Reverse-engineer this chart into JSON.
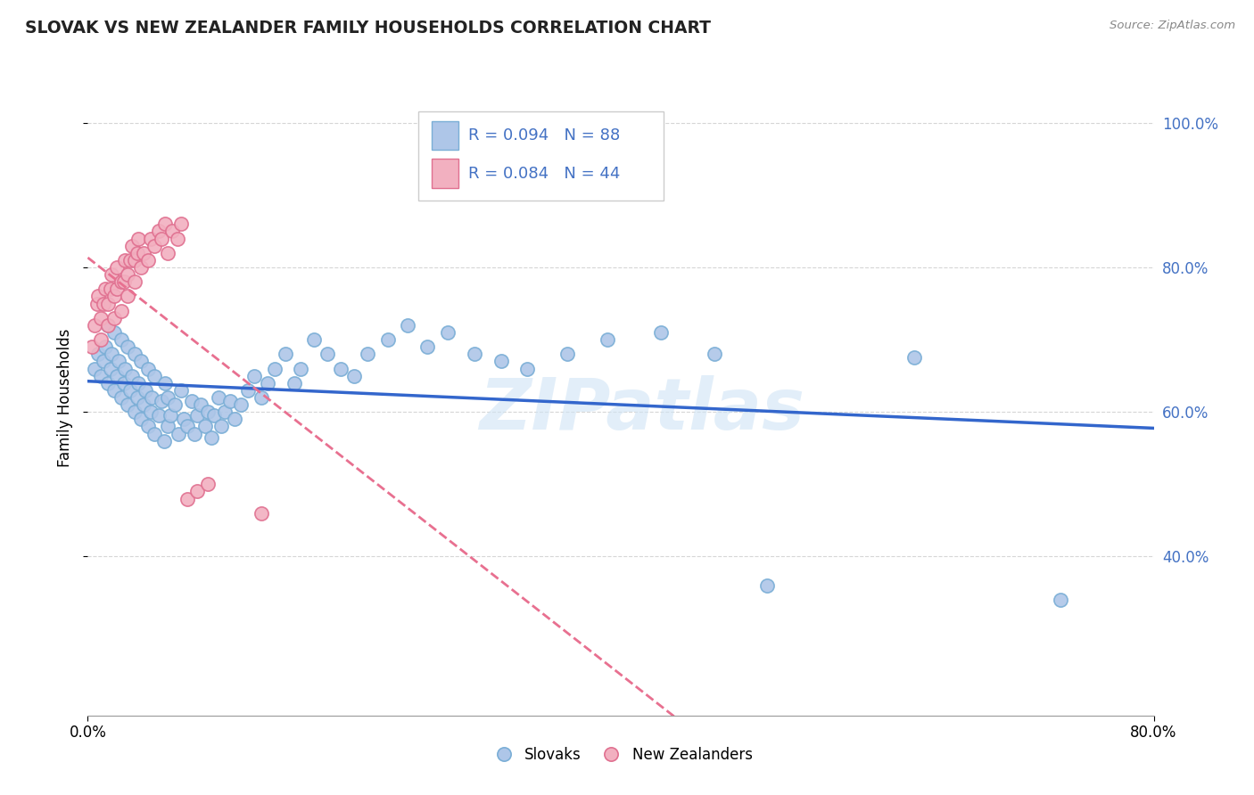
{
  "title": "SLOVAK VS NEW ZEALANDER FAMILY HOUSEHOLDS CORRELATION CHART",
  "source": "Source: ZipAtlas.com",
  "ylabel": "Family Households",
  "xlim": [
    0.0,
    0.8
  ],
  "ylim": [
    0.18,
    1.06
  ],
  "ytick_values": [
    0.4,
    0.6,
    0.8,
    1.0
  ],
  "legend_r_slovak": "R = 0.094",
  "legend_n_slovak": "N = 88",
  "legend_r_nz": "R = 0.084",
  "legend_n_nz": "N = 44",
  "slovak_color": "#aec6e8",
  "slovak_edge_color": "#7aaed6",
  "nz_color": "#f2b0c0",
  "nz_edge_color": "#e07090",
  "trendline_slovak_color": "#3366cc",
  "trendline_nz_color": "#e87090",
  "watermark": "ZIPatlas",
  "background_color": "#ffffff",
  "grid_color": "#cccccc",
  "right_tick_color": "#4472c4",
  "slovak_x": [
    0.005,
    0.008,
    0.01,
    0.012,
    0.013,
    0.015,
    0.015,
    0.017,
    0.018,
    0.02,
    0.02,
    0.022,
    0.023,
    0.025,
    0.025,
    0.027,
    0.028,
    0.03,
    0.03,
    0.032,
    0.033,
    0.035,
    0.035,
    0.037,
    0.038,
    0.04,
    0.04,
    0.042,
    0.043,
    0.045,
    0.045,
    0.047,
    0.048,
    0.05,
    0.05,
    0.053,
    0.055,
    0.057,
    0.058,
    0.06,
    0.06,
    0.062,
    0.065,
    0.068,
    0.07,
    0.072,
    0.075,
    0.078,
    0.08,
    0.082,
    0.085,
    0.088,
    0.09,
    0.093,
    0.095,
    0.098,
    0.1,
    0.103,
    0.107,
    0.11,
    0.115,
    0.12,
    0.125,
    0.13,
    0.135,
    0.14,
    0.148,
    0.155,
    0.16,
    0.17,
    0.18,
    0.19,
    0.2,
    0.21,
    0.225,
    0.24,
    0.255,
    0.27,
    0.29,
    0.31,
    0.33,
    0.36,
    0.39,
    0.43,
    0.47,
    0.51,
    0.62,
    0.73
  ],
  "slovak_y": [
    0.66,
    0.68,
    0.65,
    0.67,
    0.69,
    0.64,
    0.72,
    0.66,
    0.68,
    0.63,
    0.71,
    0.65,
    0.67,
    0.62,
    0.7,
    0.64,
    0.66,
    0.61,
    0.69,
    0.63,
    0.65,
    0.6,
    0.68,
    0.62,
    0.64,
    0.59,
    0.67,
    0.61,
    0.63,
    0.58,
    0.66,
    0.6,
    0.62,
    0.57,
    0.65,
    0.595,
    0.615,
    0.56,
    0.64,
    0.58,
    0.62,
    0.595,
    0.61,
    0.57,
    0.63,
    0.59,
    0.58,
    0.615,
    0.57,
    0.595,
    0.61,
    0.58,
    0.6,
    0.565,
    0.595,
    0.62,
    0.58,
    0.6,
    0.615,
    0.59,
    0.61,
    0.63,
    0.65,
    0.62,
    0.64,
    0.66,
    0.68,
    0.64,
    0.66,
    0.7,
    0.68,
    0.66,
    0.65,
    0.68,
    0.7,
    0.72,
    0.69,
    0.71,
    0.68,
    0.67,
    0.66,
    0.68,
    0.7,
    0.71,
    0.68,
    0.36,
    0.675,
    0.34
  ],
  "nz_x": [
    0.003,
    0.005,
    0.007,
    0.008,
    0.01,
    0.01,
    0.012,
    0.013,
    0.015,
    0.015,
    0.017,
    0.018,
    0.02,
    0.02,
    0.022,
    0.022,
    0.025,
    0.025,
    0.027,
    0.028,
    0.03,
    0.03,
    0.032,
    0.033,
    0.035,
    0.035,
    0.037,
    0.038,
    0.04,
    0.042,
    0.045,
    0.047,
    0.05,
    0.053,
    0.055,
    0.058,
    0.06,
    0.063,
    0.067,
    0.07,
    0.075,
    0.082,
    0.09,
    0.13
  ],
  "nz_y": [
    0.69,
    0.72,
    0.75,
    0.76,
    0.7,
    0.73,
    0.75,
    0.77,
    0.72,
    0.75,
    0.77,
    0.79,
    0.73,
    0.76,
    0.77,
    0.8,
    0.74,
    0.78,
    0.78,
    0.81,
    0.76,
    0.79,
    0.81,
    0.83,
    0.78,
    0.81,
    0.82,
    0.84,
    0.8,
    0.82,
    0.81,
    0.84,
    0.83,
    0.85,
    0.84,
    0.86,
    0.82,
    0.85,
    0.84,
    0.86,
    0.48,
    0.49,
    0.5,
    0.46
  ]
}
